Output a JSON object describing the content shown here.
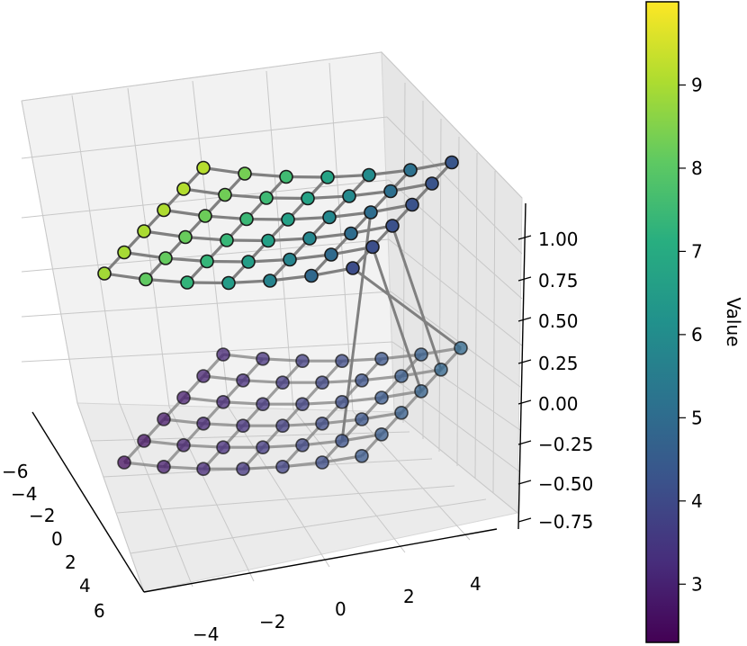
{
  "chart_data": {
    "type": "scatter",
    "projection": "3d",
    "title": "",
    "grid": true,
    "axes": {
      "x": {
        "ticks": [
          "−4",
          "−2",
          "0",
          "2",
          "4"
        ]
      },
      "y": {
        "ticks": [
          "−6",
          "−4",
          "−2",
          "0",
          "2",
          "4",
          "6"
        ]
      },
      "z": {
        "ticks": [
          "1.00",
          "0.75",
          "0.50",
          "0.25",
          "0.00",
          "−0.25",
          "−0.50",
          "−0.75"
        ],
        "range": [
          -0.8,
          1.1
        ]
      }
    },
    "colorbar": {
      "label": "Value",
      "ticks": [
        "9",
        "8",
        "7",
        "6",
        "5",
        "4",
        "3"
      ],
      "range": [
        2.3,
        10.0
      ],
      "colormap": "viridis"
    },
    "series": [
      {
        "layer": "upper",
        "z": 1.0,
        "description_colors": "values from ~8.9 at left edge to ~3.9 at right edge",
        "grid_rows": 6,
        "grid_cols": 7
      },
      {
        "layer": "lower",
        "z": -0.5,
        "grid_rows": 6,
        "grid_cols": 7
      }
    ]
  }
}
